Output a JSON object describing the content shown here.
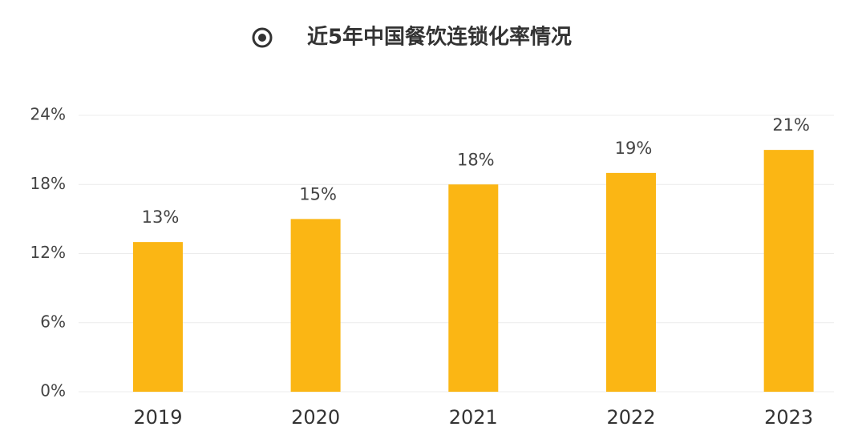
{
  "chart_data": {
    "type": "bar",
    "title": "近5年中国餐饮连锁化率情况",
    "categories": [
      "2019",
      "2020",
      "2021",
      "2022",
      "2023"
    ],
    "values": [
      13,
      15,
      18,
      19,
      21
    ],
    "value_labels": [
      "13%",
      "15%",
      "18%",
      "19%",
      "21%"
    ],
    "color": "#fbb614",
    "ylim": [
      0,
      24
    ],
    "yticks": [
      {
        "value": 0,
        "label": "0%"
      },
      {
        "value": 6,
        "label": "6%"
      },
      {
        "value": 12,
        "label": "12%"
      },
      {
        "value": 18,
        "label": "18%"
      },
      {
        "value": 24,
        "label": "24%"
      }
    ],
    "grid": true
  }
}
